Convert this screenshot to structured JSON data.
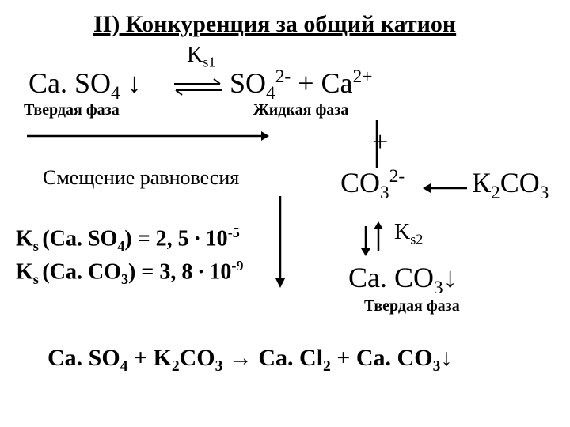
{
  "title": "II) Конкуренция за общий катион",
  "ks1": "K<sub>s1</sub>",
  "eq_left_html": "Ca. SO<sub>4</sub> ↓",
  "eq_right_html": "SO<sub>4</sub><sup>2-</sup> + Ca<sup>2+</sup>",
  "solid_phase": "Твердая фаза",
  "liquid_phase": "Жидкая фаза",
  "shift_label": "Смещение равновесия",
  "plus": "+",
  "co3_html": "CO<sub>3</sub><sup>2-</sup>",
  "k2co3_html": "К<sub>2</sub>СО<sub>3</sub>",
  "ks_caso4_html": "K<sub>s </sub>(Ca. SO<sub>4</sub>) = 2, 5 ∙ 10<sup>-5</sup>",
  "ks_caco3_html": "K<sub>s </sub>(Ca. CO<sub>3</sub>) = 3, 8 ∙ 10<sup>-9</sup>",
  "ks2_label_html": "K<sub>s2</sub>",
  "caco3_down_html": "Ca. CO<sub>3</sub>↓",
  "bottom_eq_html": "Ca. SO<sub>4</sub> + K<sub>2</sub>CO<sub>3</sub> → Ca. Cl<sub>2</sub> + Ca. CO<sub>3</sub>↓",
  "arrows": {
    "harpoon_color": "#000000",
    "arrow_color": "#000000",
    "stroke_width": 2
  }
}
